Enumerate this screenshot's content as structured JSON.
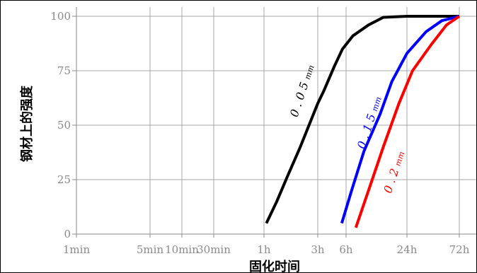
{
  "chart_data": {
    "type": "line",
    "title": "",
    "xlabel": "固化时间",
    "ylabel": "钢材上的强度",
    "x_scale": "log",
    "x_ticks": [
      {
        "label": "1min",
        "hours": 0.016667
      },
      {
        "label": "5min",
        "hours": 0.083333
      },
      {
        "label": "10min",
        "hours": 0.166667
      },
      {
        "label": "30min",
        "hours": 0.5
      },
      {
        "label": "1h",
        "hours": 1
      },
      {
        "label": "3h",
        "hours": 3
      },
      {
        "label": "6h",
        "hours": 6
      },
      {
        "label": "24h",
        "hours": 24
      },
      {
        "label": "72h",
        "hours": 72
      }
    ],
    "y_ticks": [
      "0",
      "25",
      "50",
      "75",
      "100"
    ],
    "ylim": [
      0,
      100
    ],
    "grid": true,
    "legend": "none",
    "series": [
      {
        "name": "0.05",
        "unit": "mm",
        "color": "#000000",
        "points": [
          {
            "x": 1.05,
            "y": 5
          },
          {
            "x": 1.3,
            "y": 15
          },
          {
            "x": 1.6,
            "y": 26
          },
          {
            "x": 2.1,
            "y": 40
          },
          {
            "x": 3.0,
            "y": 60
          },
          {
            "x": 3.5,
            "y": 66
          },
          {
            "x": 4.5,
            "y": 77
          },
          {
            "x": 5.5,
            "y": 85
          },
          {
            "x": 7.0,
            "y": 91
          },
          {
            "x": 10.0,
            "y": 96
          },
          {
            "x": 14.0,
            "y": 99.5
          },
          {
            "x": 24.0,
            "y": 100
          },
          {
            "x": 72.0,
            "y": 100
          }
        ]
      },
      {
        "name": "0.15",
        "unit": "mm",
        "color": "#0000ff",
        "points": [
          {
            "x": 5.4,
            "y": 5
          },
          {
            "x": 6.8,
            "y": 20
          },
          {
            "x": 9.0,
            "y": 38
          },
          {
            "x": 13.0,
            "y": 55
          },
          {
            "x": 17.0,
            "y": 70
          },
          {
            "x": 24.0,
            "y": 83
          },
          {
            "x": 36.0,
            "y": 93
          },
          {
            "x": 50.0,
            "y": 98
          },
          {
            "x": 72.0,
            "y": 100
          }
        ]
      },
      {
        "name": "0.2",
        "unit": "mm",
        "color": "#ff0000",
        "points": [
          {
            "x": 7.5,
            "y": 3
          },
          {
            "x": 10.0,
            "y": 20
          },
          {
            "x": 14.0,
            "y": 40
          },
          {
            "x": 20.0,
            "y": 60
          },
          {
            "x": 27.0,
            "y": 75
          },
          {
            "x": 40.0,
            "y": 87
          },
          {
            "x": 55.0,
            "y": 96
          },
          {
            "x": 72.0,
            "y": 100
          }
        ]
      }
    ]
  }
}
